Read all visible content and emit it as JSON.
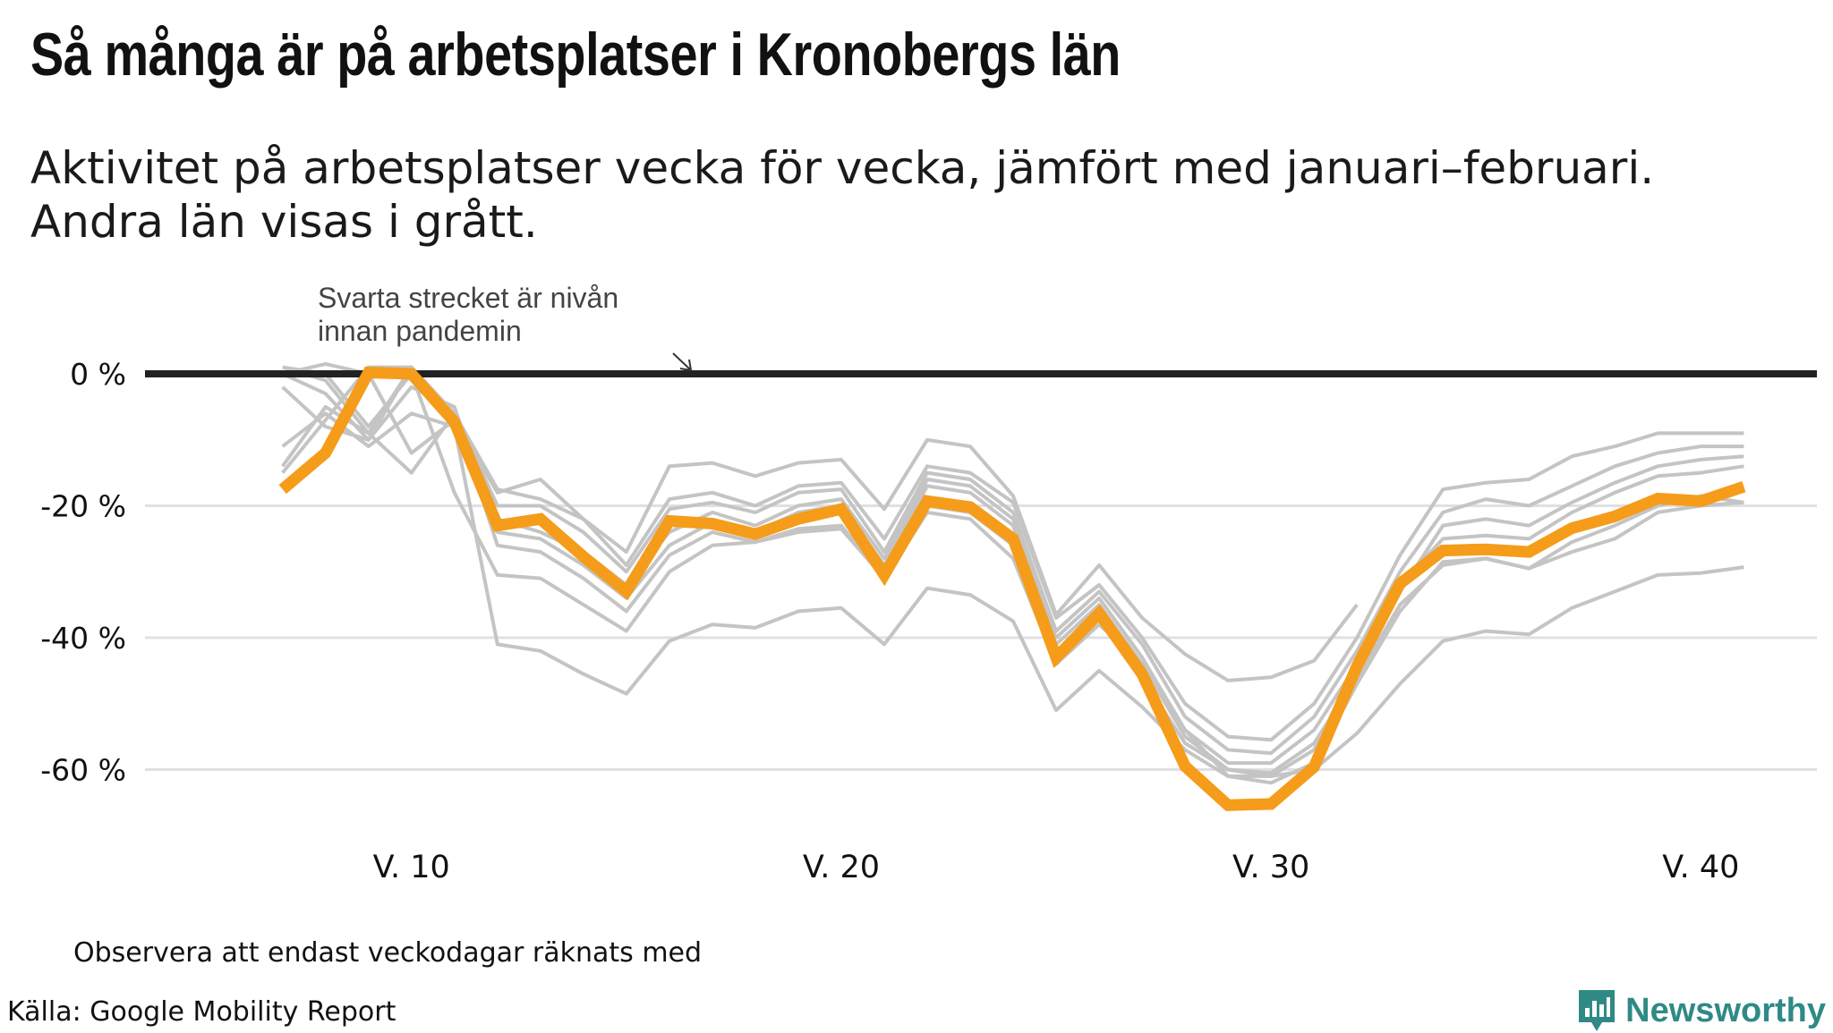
{
  "header": {
    "title": "Så många är på arbetsplatser i Kronobergs län",
    "subtitle_line1": "Aktivitet på arbetsplatser vecka för vecka, jämfört med januari–februari.",
    "subtitle_line2": "Andra län visas i grått."
  },
  "annotation": {
    "line1": "Svarta strecket är nivån",
    "line2": "innan pandemin"
  },
  "footer": {
    "note": "Observera att endast veckodagar räknats med",
    "source": "Källa: Google Mobility Report",
    "brand": "Newsworthy"
  },
  "colors": {
    "highlight": "#f59c1a",
    "others": "#c4c4c4",
    "baseline": "#222222",
    "grid": "#e0e0e4",
    "brand": "#2f8a86"
  },
  "chart_data": {
    "type": "line",
    "title": "Så många är på arbetsplatser i Kronobergs län",
    "xlabel": "",
    "ylabel": "",
    "x_start_week": 7,
    "x_ticks": [
      {
        "value": 10,
        "label": "V. 10"
      },
      {
        "value": 20,
        "label": "V. 20"
      },
      {
        "value": 30,
        "label": "V. 30"
      },
      {
        "value": 40,
        "label": "V. 40"
      }
    ],
    "y_ticks": [
      {
        "value": 0,
        "label": "0 %"
      },
      {
        "value": -20,
        "label": "-20 %"
      },
      {
        "value": -40,
        "label": "-40 %"
      },
      {
        "value": -60,
        "label": "-60 %"
      }
    ],
    "ylim": [
      -70,
      5
    ],
    "xlim": [
      3.8,
      42.7
    ],
    "baseline": 0,
    "highlight": {
      "name": "Kronobergs län",
      "values": [
        -17.5,
        -12,
        0.2,
        0,
        -7.3,
        -23,
        -22,
        -27.7,
        -33,
        -22.3,
        -22.7,
        -24.3,
        -22,
        -20.5,
        -30.5,
        -19.3,
        -20.2,
        -25,
        -43,
        -36.3,
        -45.5,
        -59.5,
        -65.4,
        -65.2,
        -59.6,
        -44.3,
        -31.8,
        -26.8,
        -26.6,
        -27,
        -23.4,
        -21.6,
        -18.9,
        -19.3,
        -17.1
      ]
    },
    "others": [
      {
        "values": [
          0,
          1.5,
          0,
          -12,
          -7,
          -18,
          -16,
          -22,
          -27,
          -14,
          -13.5,
          -15.5,
          -13.5,
          -13,
          -20.5,
          -10,
          -11,
          -18.5,
          -36.5,
          -29,
          -37,
          -42.5,
          -46.5,
          -46,
          -43.5,
          -35,
          null,
          null,
          null,
          null,
          null,
          null,
          null,
          null,
          null
        ]
      },
      {
        "values": [
          -11,
          -6,
          -11,
          -6,
          -8,
          -41,
          -42,
          -45.5,
          -48.5,
          -40.5,
          -38,
          -38.5,
          -36,
          -35.5,
          -41,
          -32.5,
          -33.5,
          -37.5,
          -51,
          -45,
          -50.5,
          -57,
          -61,
          -61,
          -60,
          -54.5,
          -47,
          -40.5,
          -39,
          -39.5,
          -35.5,
          -33,
          -30.5,
          -30.2,
          -29.3
        ]
      },
      {
        "values": [
          1,
          0,
          -8,
          0,
          -18,
          -30.5,
          -31,
          -35,
          -39,
          -30,
          -26,
          -25.5,
          -23.5,
          -23,
          -31,
          -21,
          -22,
          -28,
          -44,
          -38,
          -44,
          -54,
          -61,
          -62,
          -59,
          -47,
          -36,
          -28.5,
          -28,
          -29.5,
          -27,
          -25,
          -21,
          -20,
          -19.5
        ]
      },
      {
        "values": [
          -15,
          -7,
          1,
          1,
          -6,
          -17.5,
          -19,
          -22,
          -29,
          -19,
          -18,
          -20,
          -17,
          -16.5,
          -25,
          -14,
          -15,
          -19.5,
          -37,
          -32,
          -40,
          -50,
          -55,
          -55.5,
          -50,
          -40,
          -27.5,
          -17.5,
          -16.5,
          -16,
          -12.5,
          -11,
          -9,
          -9,
          -9
        ]
      },
      {
        "values": [
          0,
          -3,
          -10,
          1,
          -6,
          -20,
          -20,
          -24,
          -30,
          -20.5,
          -19.5,
          -21,
          -18,
          -17.5,
          -27,
          -15,
          -16,
          -21,
          -39,
          -33,
          -41,
          -52,
          -57,
          -57.5,
          -52,
          -42,
          -30,
          -21,
          -19,
          -20,
          -17,
          -14,
          -12,
          -11,
          -11
        ]
      },
      {
        "values": [
          -14,
          -5,
          -9,
          1,
          -7,
          -22,
          -24,
          -27,
          -32,
          -24,
          -21,
          -23,
          -20,
          -19,
          -28,
          -16,
          -17,
          -22,
          -40,
          -34,
          -43,
          -54,
          -59,
          -59,
          -54,
          -44,
          -33,
          -23,
          -22,
          -23,
          -19.5,
          -16.5,
          -14,
          -13,
          -12.5
        ]
      },
      {
        "values": [
          1,
          -1,
          -9,
          -15,
          -6,
          -26,
          -27,
          -31,
          -36,
          -27.5,
          -24,
          -25.5,
          -24,
          -23.5,
          -31,
          -20,
          -21,
          -26,
          -42,
          -37,
          -46,
          -56,
          -60,
          -60.5,
          -56,
          -46,
          -35,
          -29,
          -28,
          -29.5,
          -25.5,
          -23,
          -20,
          -18.5,
          -19.5
        ]
      },
      {
        "values": [
          -2,
          -8,
          -10,
          -2,
          -5,
          -24,
          -25,
          -29,
          -34,
          -26,
          -22.5,
          -24,
          -21,
          -20,
          -29,
          -17,
          -18,
          -23,
          -41,
          -35,
          -44,
          -55,
          -60,
          -61,
          -57,
          -44,
          -32,
          -25,
          -24.5,
          -25,
          -21,
          -18,
          -15.5,
          -15,
          -14
        ]
      }
    ]
  }
}
